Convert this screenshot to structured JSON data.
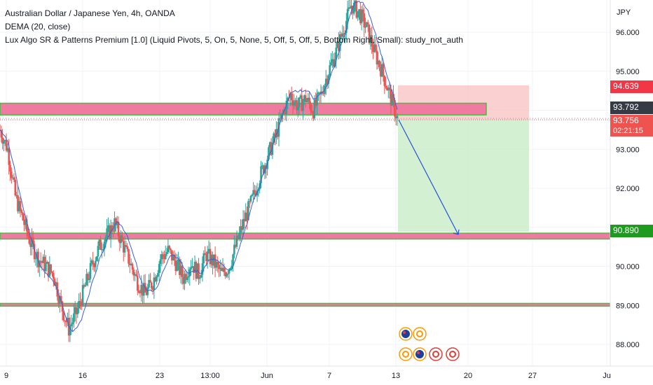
{
  "legend": {
    "symbol": "Australian Dollar / Japanese Yen, 4h, OANDA",
    "dema": "DEMA (20, close)",
    "lux": "Lux Algo SR & Patterns Premium [1.0] (Liquid Pivots, 5, On, 5, None, 5, Off, 5, Off, 5, Bottom Right, Small): study_not_auth"
  },
  "axis": {
    "currency": "JPY",
    "y_ticks": [
      "96.000",
      "95.000",
      "93.000",
      "92.000",
      "90.000",
      "89.000",
      "88.000"
    ],
    "x_ticks": [
      "9",
      "16",
      "23",
      "13:00",
      "Jun",
      "7",
      "13",
      "20",
      "27",
      "Ju"
    ]
  },
  "price_labels": {
    "stop": "94.639",
    "level": "93.792",
    "last": "93.756",
    "countdown": "02:21:15",
    "target": "90.890"
  },
  "colors": {
    "up": "#26a69a",
    "down": "#ef5350",
    "dema": "#3b5fd9",
    "sr_fill": "#f07ba0",
    "sr_border": "#3fc23f",
    "stop_zone": "#f9c0c0",
    "target_zone": "#c9ecc7",
    "arrow": "#2451d6",
    "target_tag": "#1e9b1e",
    "last_tag": "#ef5350",
    "level_tag": "#363a45"
  },
  "chart_data": {
    "type": "candlestick",
    "y_unit": "JPY",
    "ylim": [
      87.6,
      96.9
    ],
    "dema_period": 20,
    "support_resistance_zones": [
      {
        "low": 93.88,
        "high": 94.18
      },
      {
        "low": 90.7,
        "high": 90.85
      },
      {
        "low": 88.98,
        "high": 89.05
      }
    ],
    "position": {
      "side": "short",
      "entry": 93.756,
      "stop": 94.639,
      "target": 90.89
    },
    "path": [
      93.5,
      93.0,
      91.8,
      91.2,
      90.6,
      90.2,
      90.0,
      89.8,
      89.0,
      88.4,
      88.8,
      89.4,
      90.0,
      90.5,
      90.8,
      91.1,
      90.6,
      90.1,
      89.6,
      89.3,
      89.6,
      90.2,
      90.4,
      90.1,
      89.7,
      90.1,
      89.8,
      90.3,
      90.1,
      89.8,
      90.0,
      90.6,
      91.2,
      91.7,
      92.3,
      92.8,
      93.3,
      93.9,
      94.4,
      94.1,
      94.3,
      94.0,
      94.4,
      95.0,
      95.5,
      96.1,
      96.7,
      96.5,
      96.1,
      95.5,
      95.0,
      94.4,
      93.8
    ],
    "candles_per_segment": 6
  }
}
